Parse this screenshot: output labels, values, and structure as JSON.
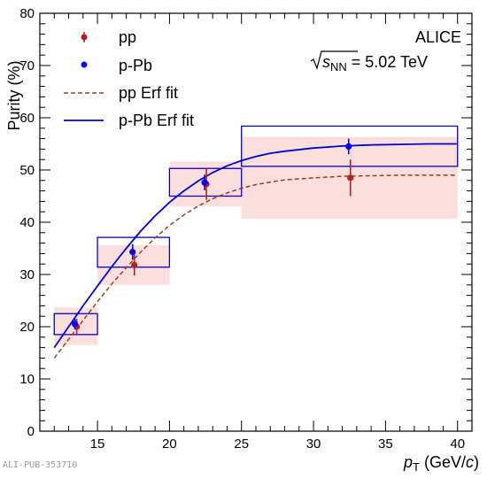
{
  "chart_data": {
    "type": "scatter",
    "xlabel": "p_T (GeV/c)",
    "xlabel_main": "p",
    "xlabel_sub": "T",
    "xlabel_unit_pre": " (GeV/",
    "xlabel_unit_italic": "c",
    "xlabel_unit_post": ")",
    "ylabel": "Purity (%)",
    "xlim": [
      11,
      41
    ],
    "ylim": [
      0,
      80
    ],
    "xticks": [
      15,
      20,
      25,
      30,
      35,
      40
    ],
    "yticks": [
      0,
      10,
      20,
      30,
      40,
      50,
      60,
      70,
      80
    ],
    "grid": false,
    "legend_position": "top-left",
    "series": [
      {
        "name": "pp",
        "color": "#b22222",
        "marker": "circle",
        "points": [
          {
            "x": 13.5,
            "y": 20.0,
            "err": 1.5,
            "xlow": 12.0,
            "xhigh": 15.0,
            "syslow": 16.5,
            "syshigh": 23.7
          },
          {
            "x": 17.5,
            "y": 31.8,
            "err": 2.0,
            "xlow": 15.0,
            "xhigh": 20.0,
            "syslow": 28.0,
            "syshigh": 35.6
          },
          {
            "x": 22.5,
            "y": 47.3,
            "err": 3.0,
            "xlow": 20.0,
            "xhigh": 25.0,
            "syslow": 43.0,
            "syshigh": 51.6
          },
          {
            "x": 32.5,
            "y": 48.5,
            "err": 3.5,
            "xlow": 25.0,
            "xhigh": 40.0,
            "syslow": 40.7,
            "syshigh": 56.3
          }
        ]
      },
      {
        "name": "p-Pb",
        "color": "#0000ee",
        "marker": "circle",
        "points": [
          {
            "x": 13.5,
            "y": 20.5,
            "err": 1.0,
            "xlow": 12.0,
            "xhigh": 15.0,
            "syslow": 18.5,
            "syshigh": 22.5
          },
          {
            "x": 17.5,
            "y": 34.3,
            "err": 1.5,
            "xlow": 15.0,
            "xhigh": 20.0,
            "syslow": 31.4,
            "syshigh": 37.1
          },
          {
            "x": 22.5,
            "y": 47.6,
            "err": 1.5,
            "xlow": 20.0,
            "xhigh": 25.0,
            "syslow": 45.0,
            "syshigh": 50.3
          },
          {
            "x": 32.5,
            "y": 54.5,
            "err": 1.5,
            "xlow": 25.0,
            "xhigh": 40.0,
            "syslow": 50.7,
            "syshigh": 58.4
          }
        ]
      }
    ],
    "fits": [
      {
        "name": "pp Erf fit",
        "color": "#a0401a",
        "dashed": true,
        "x": [
          12,
          12.5,
          13,
          14,
          15,
          16,
          17,
          18,
          19,
          20,
          21,
          22,
          23,
          24,
          25,
          26,
          27,
          28,
          30,
          32,
          34,
          36,
          38,
          40
        ],
        "y": [
          14.0,
          15.8,
          17.6,
          21.2,
          24.8,
          28.2,
          31.3,
          34.3,
          37.0,
          39.4,
          41.4,
          43.1,
          44.5,
          45.6,
          46.5,
          47.2,
          47.7,
          48.1,
          48.5,
          48.8,
          48.9,
          49.0,
          49.0,
          49.0
        ]
      },
      {
        "name": "p-Pb Erf fit",
        "color": "#0000cc",
        "dashed": false,
        "x": [
          12,
          12.5,
          13,
          14,
          15,
          16,
          17,
          18,
          19,
          20,
          21,
          22,
          23,
          24,
          25,
          26,
          27,
          28,
          30,
          32,
          34,
          36,
          38,
          40
        ],
        "y": [
          16.0,
          18.0,
          20.0,
          24.0,
          27.8,
          31.5,
          35.0,
          38.3,
          41.2,
          43.8,
          46.0,
          47.9,
          49.5,
          50.8,
          51.8,
          52.6,
          53.2,
          53.6,
          54.2,
          54.6,
          54.8,
          54.9,
          55.0,
          55.0
        ]
      }
    ],
    "annotations": {
      "experiment": "ALICE",
      "energy_sqrt": "s",
      "energy_sub": "NN",
      "energy_value": " = 5.02 TeV"
    },
    "footer": "ALI-PUB-353710"
  }
}
